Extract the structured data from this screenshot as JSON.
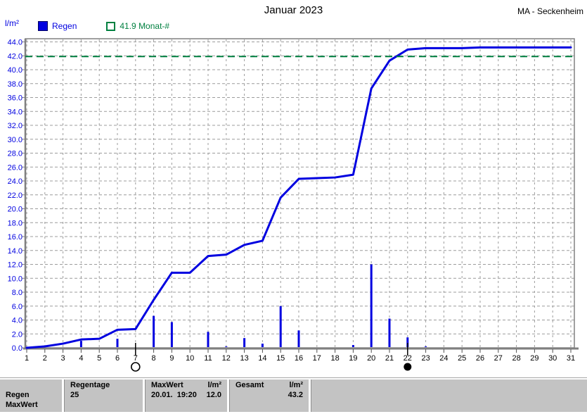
{
  "header": {
    "title": "Januar 2023",
    "station": "MA - Seckenheim",
    "y_unit_label": "l/m²",
    "legend": [
      {
        "label": "Regen",
        "color": "#0000e0",
        "swatch": "filled-square"
      },
      {
        "label": "41.9 Monat-#",
        "color": "#008040",
        "swatch": "open-square"
      }
    ]
  },
  "chart_data": {
    "type": "line",
    "title": "Januar 2023",
    "ylabel": "l/m²",
    "xlabel": "",
    "x": [
      1,
      2,
      3,
      4,
      5,
      6,
      7,
      8,
      9,
      10,
      11,
      12,
      13,
      14,
      15,
      16,
      17,
      18,
      19,
      20,
      21,
      22,
      23,
      24,
      25,
      26,
      27,
      28,
      29,
      30,
      31
    ],
    "ylim": [
      0,
      44.4
    ],
    "ytick_step": 2,
    "grid": true,
    "legend_position": "top-left",
    "series": [
      {
        "name": "Regen kumuliert",
        "type": "line",
        "color": "#0000e0",
        "values": [
          0.0,
          0.2,
          0.6,
          1.2,
          1.3,
          2.6,
          2.7,
          6.9,
          10.8,
          10.8,
          13.2,
          13.4,
          14.8,
          15.4,
          21.6,
          24.3,
          24.4,
          24.5,
          24.9,
          37.3,
          41.3,
          42.9,
          43.1,
          43.1,
          43.1,
          43.2,
          43.2,
          43.2,
          43.2,
          43.2,
          43.2
        ]
      },
      {
        "name": "Regen Tageswerte",
        "type": "bar",
        "color": "#0000e0",
        "values": [
          0,
          0.2,
          0,
          1.0,
          0,
          1.3,
          0,
          4.6,
          3.7,
          0,
          2.3,
          0.2,
          1.4,
          0.6,
          6.0,
          2.5,
          0.1,
          0.1,
          0.4,
          12.0,
          4.2,
          1.5,
          0.2,
          0,
          0,
          0,
          0,
          0,
          0,
          0,
          0.1
        ]
      },
      {
        "name": "Monat-# Referenzlinie",
        "type": "hline",
        "color": "#008040",
        "style": "dashed",
        "value": 41.9
      }
    ],
    "x_markers": [
      {
        "x": 7,
        "symbol": "open-circle"
      },
      {
        "x": 22,
        "symbol": "filled-circle"
      }
    ]
  },
  "footer": {
    "row1_label": "Regen",
    "row2_label": "MaxWert",
    "regentage": {
      "header": "Regentage",
      "value": "25"
    },
    "maxwert": {
      "header": "MaxWert",
      "unit": "l/m²",
      "datetime": "20.01.  19:20",
      "value": "12.0"
    },
    "gesamt": {
      "header": "Gesamt",
      "unit": "l/m²",
      "value": "43.2"
    }
  }
}
